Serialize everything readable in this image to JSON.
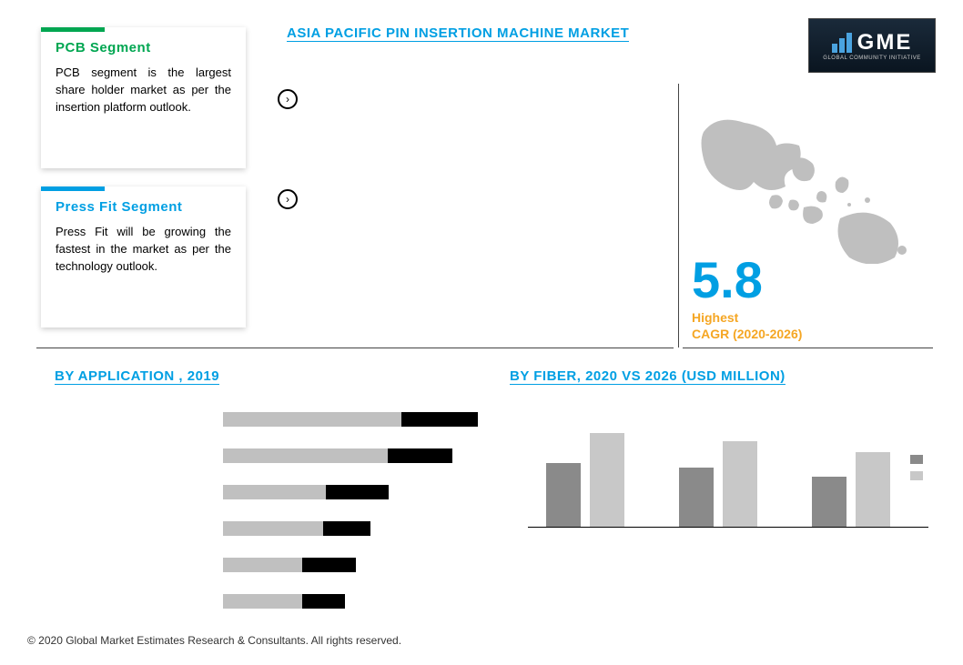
{
  "title": "ASIA PACIFIC PIN INSERTION MACHINE  MARKET",
  "logo": {
    "text": "GME",
    "sub": "GLOBAL COMMUNITY INITIATIVE"
  },
  "cards": [
    {
      "bar_color": "#00a651",
      "title_color": "#00a651",
      "title": "PCB  Segment",
      "body": "PCB segment is the largest share holder market as per the insertion platform outlook."
    },
    {
      "bar_color": "#009fe3",
      "title_color": "#009fe3",
      "title": "Press Fit Segment",
      "body": "Press Fit will be growing the fastest in the market as per the technology outlook."
    }
  ],
  "cagr": {
    "value": "5.8",
    "label1": "Highest",
    "label2": "CAGR (2020-2026)"
  },
  "app_section_title": "BY APPLICATION , 2019",
  "fiber_section_title": "BY FIBER,  2020 VS 2026 (USD MILLION)",
  "application_chart": {
    "type": "bar-horizontal",
    "bar_bg_color": "#000000",
    "bar_fill_color": "#c0c0c0",
    "bars": [
      {
        "total_width_pct": 100,
        "fill_pct": 70
      },
      {
        "total_width_pct": 90,
        "fill_pct": 72
      },
      {
        "total_width_pct": 65,
        "fill_pct": 62
      },
      {
        "total_width_pct": 58,
        "fill_pct": 68
      },
      {
        "total_width_pct": 52,
        "fill_pct": 60
      },
      {
        "total_width_pct": 48,
        "fill_pct": 65
      }
    ]
  },
  "fiber_chart": {
    "type": "bar-grouped",
    "colors": {
      "y2020": "#8a8a8a",
      "y2026": "#c8c8c8"
    },
    "max_value": 100,
    "groups": [
      {
        "y2020": 58,
        "y2026": 86
      },
      {
        "y2020": 54,
        "y2026": 78
      },
      {
        "y2020": 46,
        "y2026": 68
      }
    ],
    "legend": [
      "",
      ""
    ]
  },
  "copyright": "© 2020 Global Market Estimates Research & Consultants. All rights reserved."
}
